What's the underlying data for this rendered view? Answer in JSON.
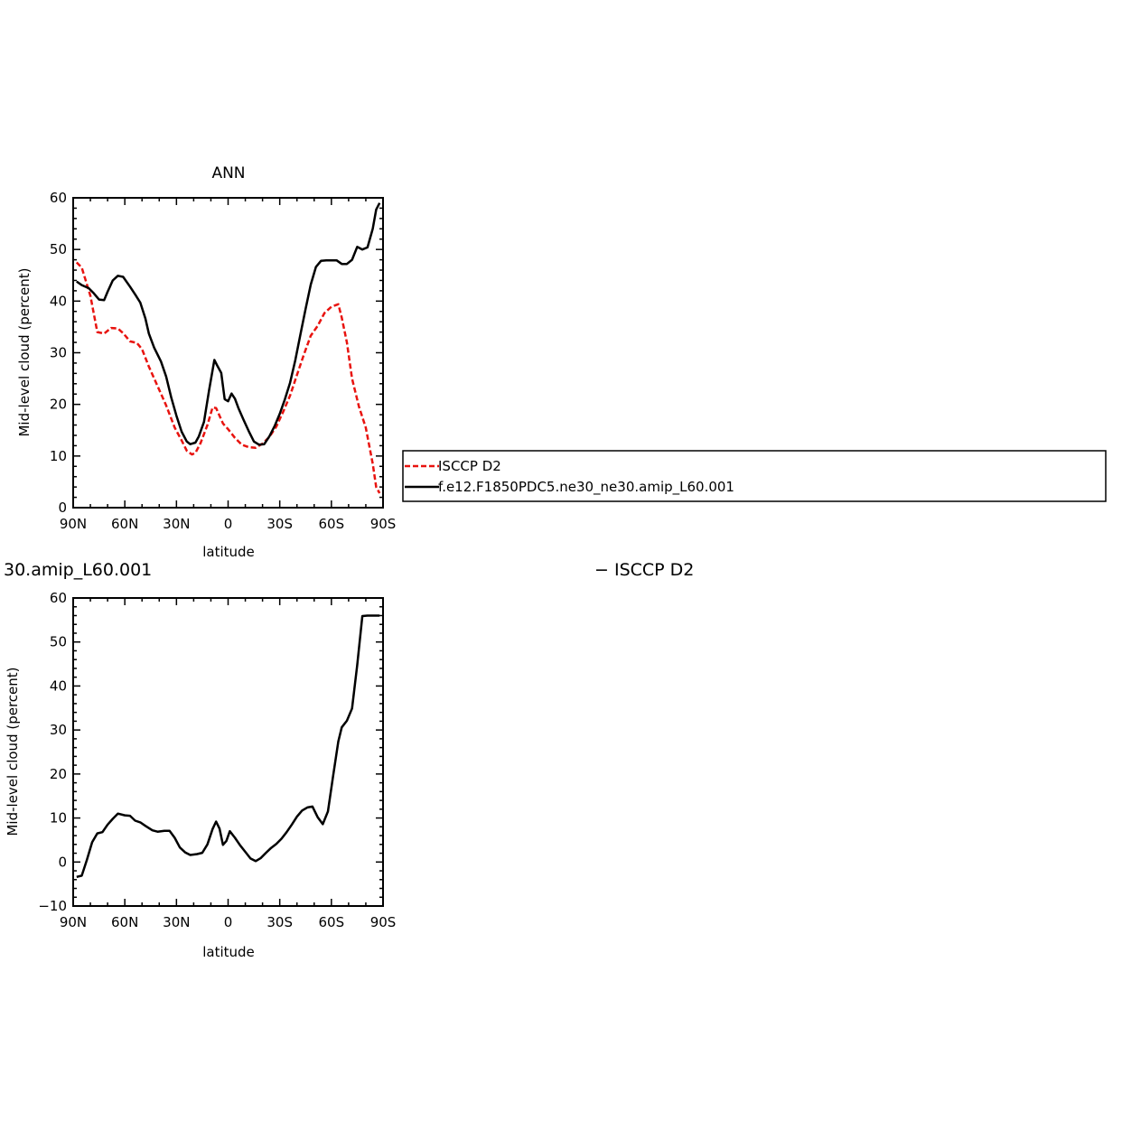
{
  "chart_data": [
    {
      "type": "line",
      "title": "ANN",
      "xlabel": "latitude",
      "ylabel": "Mid-level cloud (percent)",
      "xlim": [
        -90,
        90
      ],
      "ylim": [
        0,
        60
      ],
      "yticks": [
        0,
        10,
        20,
        30,
        40,
        50,
        60
      ],
      "xticks": [
        {
          "value": -90,
          "label": "90N"
        },
        {
          "value": -60,
          "label": "60N"
        },
        {
          "value": -30,
          "label": "30N"
        },
        {
          "value": 0,
          "label": "0"
        },
        {
          "value": 30,
          "label": "30S"
        },
        {
          "value": 60,
          "label": "60S"
        },
        {
          "value": 90,
          "label": "90S"
        }
      ],
      "legend": {
        "placement": "right, outside plot",
        "entries": [
          {
            "label": "ISCCP D2",
            "color": "#e8130f",
            "dash": "dashed"
          },
          {
            "label": "f.e12.F1850PDC5.ne30_ne30.amip_L60.001",
            "color": "#000000",
            "dash": "solid"
          }
        ]
      },
      "series": [
        {
          "name": "ISCCP D2",
          "color": "#e8130f",
          "dash": "dashed",
          "x": [
            -88,
            -85,
            -80,
            -76,
            -72,
            -68,
            -64,
            -61,
            -57,
            -53,
            -50,
            -46,
            -42,
            -36,
            -31,
            -27,
            -24,
            -21,
            -19,
            -16,
            -12,
            -9,
            -7,
            -5,
            -3,
            0,
            4,
            8,
            12,
            16,
            20,
            24,
            28,
            32,
            36,
            40,
            44,
            48,
            52,
            56,
            60,
            64,
            66,
            69,
            72,
            76,
            80,
            84,
            86,
            88
          ],
          "y": [
            47.5,
            46.5,
            41,
            34,
            33.7,
            34.8,
            34.7,
            33.8,
            32.2,
            31.9,
            30.7,
            27.3,
            24.3,
            19.8,
            15.5,
            13,
            11,
            10.3,
            10.6,
            12.5,
            16,
            19.4,
            19.3,
            17.8,
            16.3,
            15.2,
            13.5,
            12.2,
            11.7,
            11.6,
            12.4,
            13.7,
            15.7,
            18.6,
            21.7,
            25.7,
            29.6,
            33.3,
            35.2,
            37.7,
            38.9,
            39.4,
            36.8,
            32,
            25,
            19.6,
            15.5,
            8.5,
            4,
            2.8
          ]
        },
        {
          "name": "f.e12.F1850PDC5.ne30_ne30.amip_L60.001",
          "color": "#000000",
          "dash": "solid",
          "x": [
            -88,
            -85,
            -81,
            -78,
            -75,
            -72,
            -70,
            -67,
            -64,
            -61,
            -57,
            -54,
            -51,
            -48,
            -46,
            -43,
            -39,
            -36,
            -33,
            -30,
            -27,
            -24,
            -22,
            -19,
            -17,
            -14,
            -11,
            -8,
            -6,
            -4,
            -2,
            0,
            2,
            4,
            6,
            9,
            12,
            15,
            18,
            21,
            24,
            27,
            30,
            33,
            36,
            39,
            42,
            45,
            48,
            51,
            54,
            57,
            60,
            63,
            66,
            69,
            72,
            75,
            78,
            81,
            84,
            86,
            88
          ],
          "y": [
            43.8,
            43.1,
            42.5,
            41.5,
            40.3,
            40.2,
            41.8,
            44,
            44.9,
            44.7,
            42.8,
            41.3,
            39.7,
            36.6,
            33.7,
            31,
            28.3,
            25.4,
            21.3,
            17.8,
            14.7,
            12.8,
            12.3,
            12.6,
            13.8,
            16.6,
            22.8,
            28.6,
            27.3,
            26.1,
            21,
            20.6,
            22.1,
            21.1,
            19.3,
            17,
            14.8,
            12.8,
            12.2,
            12.3,
            13.8,
            15.8,
            18.2,
            21,
            24.2,
            28.5,
            33.5,
            38.5,
            43.2,
            46.6,
            47.8,
            47.9,
            47.9,
            47.9,
            47.2,
            47.2,
            48,
            50.5,
            50,
            50.4,
            54,
            57.7,
            59
          ]
        }
      ]
    },
    {
      "type": "line",
      "title": "30.amip_L60.001",
      "subtitle": "− ISCCP D2",
      "xlabel": "latitude",
      "ylabel": "Mid-level cloud (percent)",
      "xlim": [
        -90,
        90
      ],
      "ylim": [
        -10,
        60
      ],
      "yticks": [
        -10,
        0,
        10,
        20,
        30,
        40,
        50,
        60
      ],
      "xticks": [
        {
          "value": -90,
          "label": "90N"
        },
        {
          "value": -60,
          "label": "60N"
        },
        {
          "value": -30,
          "label": "30N"
        },
        {
          "value": 0,
          "label": "0"
        },
        {
          "value": 30,
          "label": "30S"
        },
        {
          "value": 60,
          "label": "60S"
        },
        {
          "value": 90,
          "label": "90S"
        }
      ],
      "series": [
        {
          "color": "#000000",
          "dash": "solid",
          "x": [
            -88,
            -85,
            -82,
            -79,
            -76,
            -73,
            -70,
            -67,
            -64,
            -60,
            -57,
            -54,
            -51,
            -48,
            -44,
            -41,
            -37,
            -34,
            -31,
            -28,
            -25,
            -22,
            -18,
            -15,
            -12,
            -9,
            -7,
            -5,
            -3,
            -1,
            1,
            4,
            7,
            10,
            13,
            16,
            19,
            22,
            25,
            28,
            31,
            34,
            37,
            40,
            43,
            46,
            49,
            52,
            55,
            58,
            61,
            64,
            66,
            69,
            72,
            75,
            78,
            81,
            84,
            87,
            88
          ],
          "y": [
            -3.4,
            -3.1,
            0.5,
            4.5,
            6.5,
            6.8,
            8.5,
            9.8,
            11,
            10.6,
            10.5,
            9.4,
            9,
            8.2,
            7.2,
            6.9,
            7.1,
            7.1,
            5.5,
            3.3,
            2.2,
            1.6,
            1.8,
            2.1,
            4,
            7.5,
            9.2,
            7.6,
            3.9,
            4.8,
            7,
            5.5,
            3.8,
            2.3,
            0.8,
            0.2,
            0.9,
            2.1,
            3.2,
            4.1,
            5.3,
            6.8,
            8.5,
            10.3,
            11.7,
            12.4,
            12.6,
            10.2,
            8.6,
            11.5,
            19.5,
            27.4,
            30.6,
            32.1,
            34.9,
            44.7,
            55.9,
            56,
            56,
            56,
            56
          ]
        }
      ]
    }
  ]
}
